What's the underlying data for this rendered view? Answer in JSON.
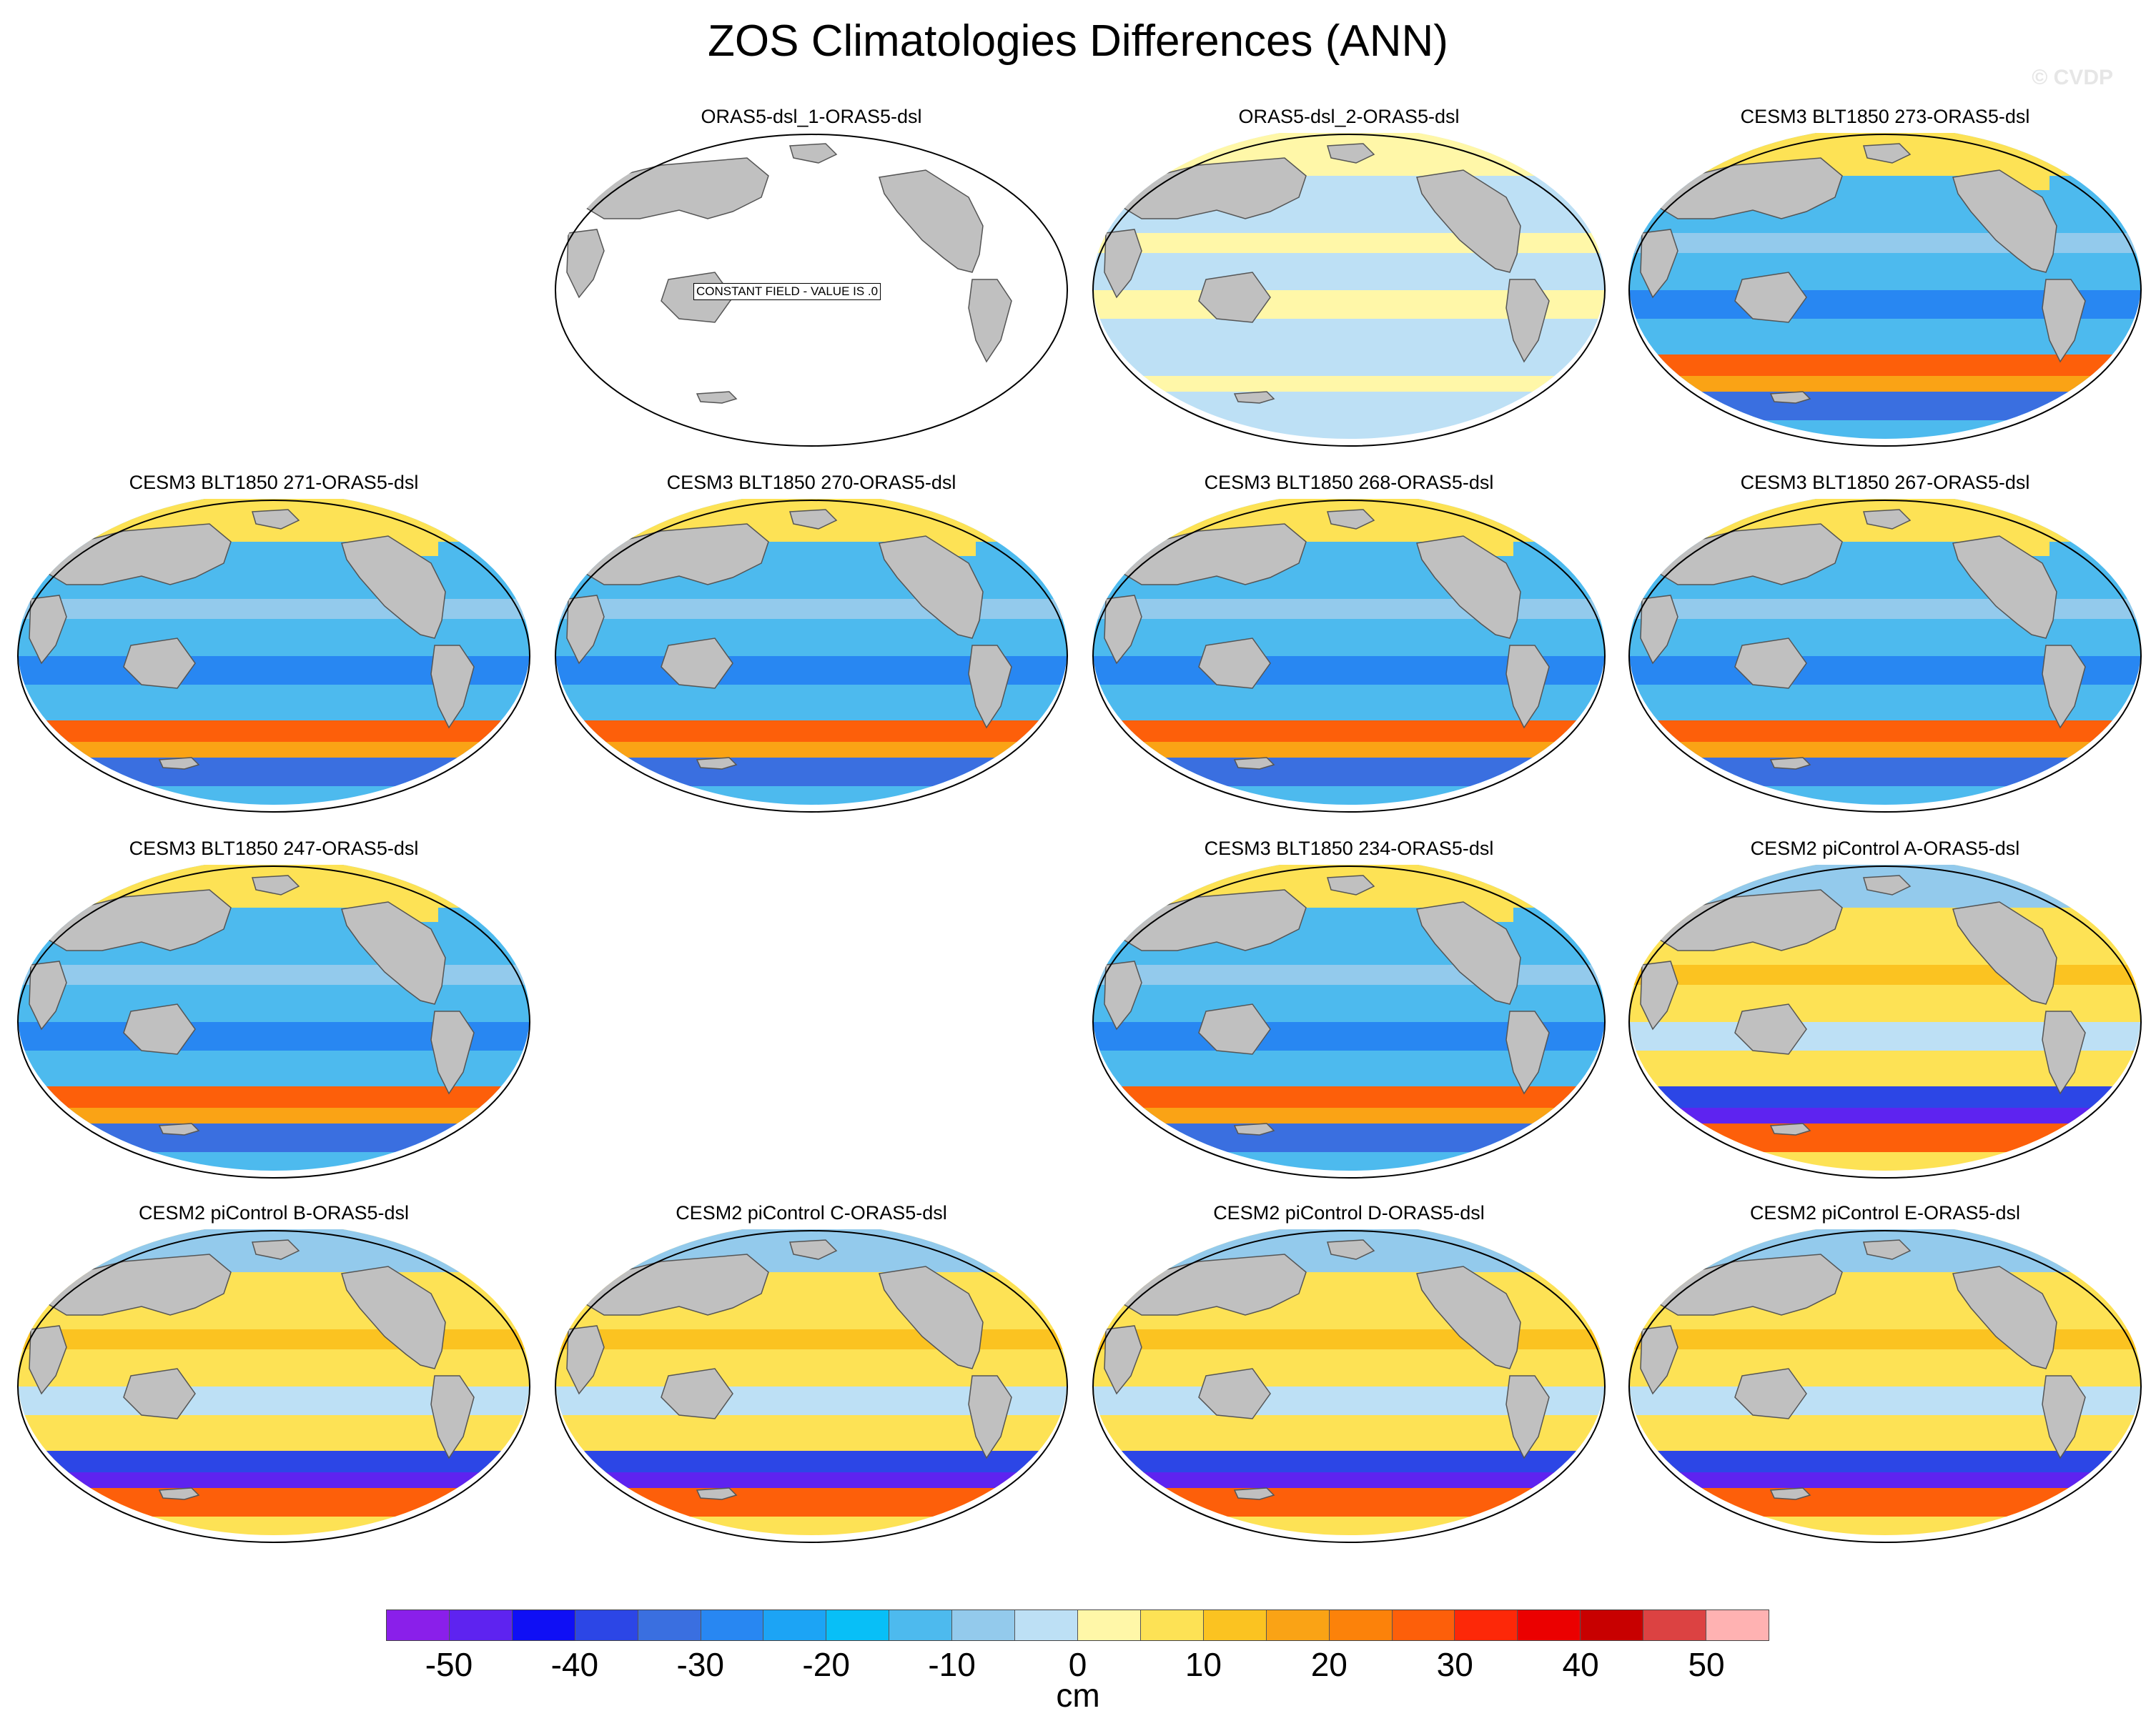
{
  "title": "ZOS Climatologies Differences (ANN)",
  "watermark": "© CVDP",
  "units": "cm",
  "colorbar": {
    "colors": [
      "#8a1fea",
      "#5e23f0",
      "#0f0ff5",
      "#2c46e6",
      "#3a6fe0",
      "#2887f2",
      "#1ca4f5",
      "#08bff7",
      "#4dbaee",
      "#93caec",
      "#bde0f5",
      "#fff7a8",
      "#fde255",
      "#fbc321",
      "#faa315",
      "#fc820a",
      "#fd5f0a",
      "#fd2808",
      "#eb0000",
      "#c80000",
      "#dc4242",
      "#ffb2b2"
    ],
    "tick_labels": [
      "-50",
      "-40",
      "-30",
      "-20",
      "-10",
      "0",
      "10",
      "20",
      "30",
      "40",
      "50"
    ]
  },
  "panels": [
    {
      "label": "ORAS5-dsl_1-ORAS5-dsl",
      "style": "constant",
      "note": "CONSTANT FIELD - VALUE IS .0"
    },
    {
      "label": "ORAS5-dsl_2-ORAS5-dsl",
      "style": "neutral"
    },
    {
      "label": "CESM3 BLT1850 273-ORAS5-dsl",
      "style": "cool"
    },
    {
      "label": "CESM3 BLT1850 271-ORAS5-dsl",
      "style": "cool"
    },
    {
      "label": "CESM3 BLT1850 270-ORAS5-dsl",
      "style": "cool"
    },
    {
      "label": "CESM3 BLT1850 268-ORAS5-dsl",
      "style": "cool"
    },
    {
      "label": "CESM3 BLT1850 267-ORAS5-dsl",
      "style": "cool"
    },
    {
      "label": "CESM3 BLT1850 247-ORAS5-dsl",
      "style": "cool"
    },
    {
      "label": "CESM3 BLT1850 234-ORAS5-dsl",
      "style": "cool"
    },
    {
      "label": "CESM2 piControl A-ORAS5-dsl",
      "style": "warm"
    },
    {
      "label": "CESM2 piControl B-ORAS5-dsl",
      "style": "warm"
    },
    {
      "label": "CESM2 piControl C-ORAS5-dsl",
      "style": "warm"
    },
    {
      "label": "CESM2 piControl D-ORAS5-dsl",
      "style": "warm"
    },
    {
      "label": "CESM2 piControl E-ORAS5-dsl",
      "style": "warm"
    }
  ]
}
